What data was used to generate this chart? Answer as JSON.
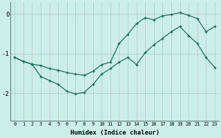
{
  "xlabel": "Humidex (Indice chaleur)",
  "background_color": "#cceee8",
  "line_color": "#1a6b5a",
  "grid_color": "#b0c8c4",
  "xlim": [
    -0.5,
    23.5
  ],
  "ylim": [
    -2.7,
    0.3
  ],
  "yticks": [
    0,
    -1,
    -2
  ],
  "xticks": [
    0,
    1,
    2,
    3,
    4,
    5,
    6,
    7,
    8,
    9,
    10,
    11,
    12,
    13,
    14,
    15,
    16,
    17,
    18,
    19,
    20,
    21,
    22,
    23
  ],
  "curve1_x": [
    0,
    1,
    2,
    3,
    4,
    5,
    6,
    7,
    8,
    9,
    10,
    11,
    12,
    13,
    14,
    15,
    16,
    17,
    18,
    19,
    20,
    21,
    22,
    23
  ],
  "curve1_y": [
    -1.1,
    -1.2,
    -1.27,
    -1.3,
    -1.38,
    -1.42,
    -1.48,
    -1.52,
    -1.55,
    -1.45,
    -1.28,
    -1.22,
    -0.75,
    -0.52,
    -0.25,
    -0.1,
    -0.15,
    -0.05,
    -0.02,
    0.03,
    -0.04,
    -0.12,
    -0.45,
    -0.32
  ],
  "curve2_x": [
    0,
    1,
    2,
    3,
    4,
    5,
    6,
    7,
    8,
    9,
    10,
    11,
    12,
    13,
    14,
    15,
    16,
    17,
    18,
    19,
    20,
    21,
    22,
    23
  ],
  "curve2_y": [
    -1.1,
    -1.2,
    -1.27,
    -1.58,
    -1.68,
    -1.78,
    -1.95,
    -2.02,
    -1.98,
    -1.78,
    -1.52,
    -1.38,
    -1.22,
    -1.1,
    -1.28,
    -0.98,
    -0.78,
    -0.62,
    -0.45,
    -0.32,
    -0.55,
    -0.75,
    -1.1,
    -1.35
  ]
}
